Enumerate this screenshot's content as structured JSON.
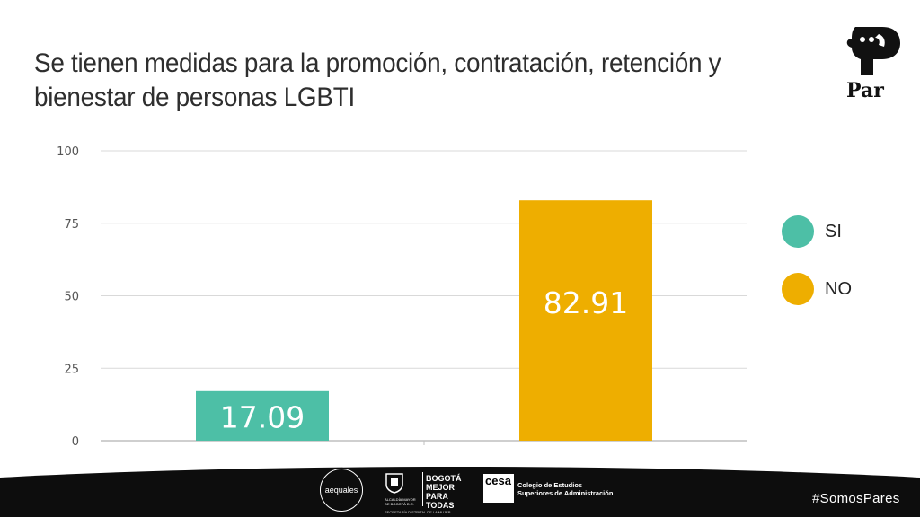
{
  "header": {
    "title": "Se tienen medidas para la promoción, contratación, retención y bienestar de personas LGBTI",
    "brand_word": "Par"
  },
  "chart_data": {
    "type": "bar",
    "categories": [
      "SI",
      "NO"
    ],
    "values": [
      17.09,
      82.91
    ],
    "data_labels": [
      "17.09",
      "82.91"
    ],
    "colors": [
      "#4dbfa6",
      "#eeae00"
    ],
    "ylim": [
      0,
      100
    ],
    "yticks": [
      0,
      25,
      50,
      75,
      100
    ],
    "ytick_labels": [
      "0",
      "25",
      "50",
      "75",
      "100"
    ],
    "grid": true,
    "legend_position": "right",
    "legend": [
      {
        "label": "SI",
        "color": "#4dbfa6"
      },
      {
        "label": "NO",
        "color": "#eeae00"
      }
    ]
  },
  "footer": {
    "logo_aequales": "aequales",
    "logo_bogota_small": "ALCALDÍA MAYOR DE BOGOTÁ D.C.",
    "logo_bogota_big": "BOGOTÁ MEJOR PARA TODAS",
    "logo_bogota_sub": "SECRETARÍA DISTRITAL DE LA MUJER",
    "logo_cesa_mark": "cesa",
    "logo_cesa_text_1": "Colegio de Estudios",
    "logo_cesa_text_2": "Superiores de Administración",
    "hashtag": "#SomosPares",
    "background": "#0d0d0d"
  }
}
